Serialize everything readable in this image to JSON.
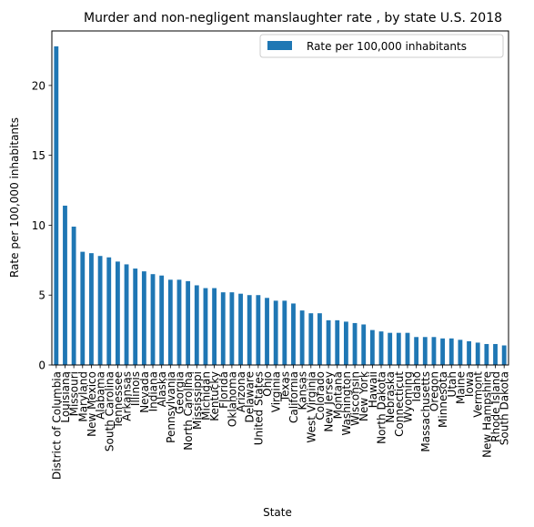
{
  "chart_data": {
    "type": "bar",
    "title": "Murder and non-negligent manslaughter rate , by state U.S. 2018",
    "xlabel": "State",
    "ylabel": "Rate per 100,000 inhabitants",
    "ylim": [
      0,
      23.9
    ],
    "yticks": [
      0,
      5,
      10,
      15,
      20
    ],
    "grid": false,
    "legend_position": "top-right",
    "bar_color": "#1f77b4",
    "categories": [
      "District of Columbia",
      "Louisiana",
      "Missouri",
      "Maryland",
      "New Mexico",
      "Alabama",
      "South Carolina",
      "Tennessee",
      "Arkansas",
      "Illinois",
      "Nevada",
      "Indiana",
      "Alaska",
      "Pennsylvania",
      "Georgia",
      "North Carolina",
      "Mississippi",
      "Michigan",
      "Kentucky",
      "Florida",
      "Oklahoma",
      "Arizona",
      "Delaware",
      "United States",
      "Ohio",
      "Virginia",
      "Texas",
      "California",
      "Kansas",
      "West Virginia",
      "Colorado",
      "New Jersey",
      "Montana",
      "Washington",
      "Wisconsin",
      "New York",
      "Hawaii",
      "North Dakota",
      "Nebraska",
      "Connecticut",
      "Wyoming",
      "Idaho",
      "Massachusetts",
      "Oregon",
      "Minnesota",
      "Utah",
      "Maine",
      "Iowa",
      "Vermont",
      "New Hampshire",
      "Rhode Island",
      "South Dakota"
    ],
    "series": [
      {
        "name": "Rate per 100,000 inhabitants",
        "values": [
          22.8,
          11.4,
          9.9,
          8.1,
          8.0,
          7.8,
          7.7,
          7.4,
          7.2,
          6.9,
          6.7,
          6.5,
          6.4,
          6.1,
          6.1,
          6.0,
          5.7,
          5.5,
          5.5,
          5.2,
          5.2,
          5.1,
          5.0,
          5.0,
          4.8,
          4.6,
          4.6,
          4.4,
          3.9,
          3.7,
          3.7,
          3.2,
          3.2,
          3.1,
          3.0,
          2.9,
          2.5,
          2.4,
          2.3,
          2.3,
          2.3,
          2.0,
          2.0,
          2.0,
          1.9,
          1.9,
          1.8,
          1.7,
          1.6,
          1.5,
          1.5,
          1.4
        ]
      }
    ]
  }
}
